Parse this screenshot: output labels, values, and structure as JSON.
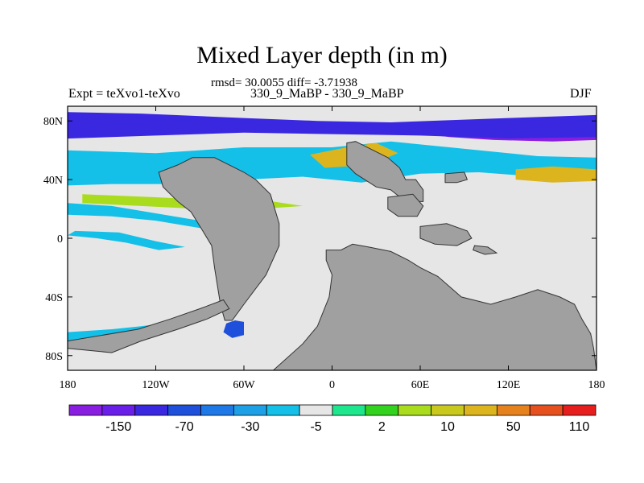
{
  "chart_data": {
    "type": "heatmap",
    "title": "Mixed Layer depth (in m)",
    "stats_text": "rmsd= 30.0055 diff= -3.71938",
    "left_label": "Expt = teXvo1-teXvo",
    "center_label": "330_9_MaBP - 330_9_MaBP",
    "right_label": "DJF",
    "xlim": [
      -180,
      180
    ],
    "ylim": [
      -90,
      90
    ],
    "x_ticks": [
      {
        "value": -180,
        "label": "180"
      },
      {
        "value": -120,
        "label": "120W"
      },
      {
        "value": -60,
        "label": "60W"
      },
      {
        "value": 0,
        "label": "0"
      },
      {
        "value": 60,
        "label": "60E"
      },
      {
        "value": 120,
        "label": "120E"
      },
      {
        "value": 180,
        "label": "180"
      }
    ],
    "y_ticks": [
      {
        "value": 80,
        "label": "80N"
      },
      {
        "value": 40,
        "label": "40N"
      },
      {
        "value": 0,
        "label": "0"
      },
      {
        "value": -40,
        "label": "40S"
      },
      {
        "value": -80,
        "label": "80S"
      }
    ],
    "colorbar": {
      "colors": [
        "#8a1ee0",
        "#6a1fe8",
        "#3a28e0",
        "#1e50dc",
        "#1e78e6",
        "#1ea0e6",
        "#14c0e8",
        "#e6e6e6",
        "#1ee68c",
        "#32d21e",
        "#aadc1e",
        "#c8c81e",
        "#dcb41e",
        "#e6821e",
        "#e6501e",
        "#e61e1e"
      ],
      "labels": [
        {
          "after_box": 2,
          "text": "-150"
        },
        {
          "after_box": 4,
          "text": "-70"
        },
        {
          "after_box": 6,
          "text": "-30"
        },
        {
          "after_box": 8,
          "text": "-5"
        },
        {
          "after_box": 10,
          "text": "2"
        },
        {
          "after_box": 12,
          "text": "10"
        },
        {
          "after_box": 14,
          "text": "50"
        },
        {
          "after_box": 16,
          "text": "110"
        }
      ]
    },
    "colors": {
      "land": "#a0a0a0",
      "ocean_neutral": "#e6e6e6"
    },
    "land_masks": [
      {
        "name": "americas",
        "points": [
          [
            -105,
            50
          ],
          [
            -95,
            55
          ],
          [
            -80,
            55
          ],
          [
            -70,
            50
          ],
          [
            -60,
            45
          ],
          [
            -52,
            40
          ],
          [
            -42,
            30
          ],
          [
            -36,
            10
          ],
          [
            -36,
            -5
          ],
          [
            -45,
            -25
          ],
          [
            -60,
            -45
          ],
          [
            -68,
            -56
          ],
          [
            -73,
            -56
          ],
          [
            -76,
            -45
          ],
          [
            -80,
            -20
          ],
          [
            -82,
            -5
          ],
          [
            -88,
            5
          ],
          [
            -96,
            18
          ],
          [
            -105,
            25
          ],
          [
            -115,
            35
          ],
          [
            -118,
            45
          ]
        ]
      },
      {
        "name": "africa",
        "points": [
          [
            -4,
            -8
          ],
          [
            6,
            -8
          ],
          [
            14,
            -4
          ],
          [
            25,
            -6
          ],
          [
            40,
            -9
          ],
          [
            52,
            -15
          ],
          [
            60,
            -20
          ],
          [
            72,
            -26
          ],
          [
            88,
            -40
          ],
          [
            108,
            -45
          ],
          [
            125,
            -40
          ],
          [
            140,
            -35
          ],
          [
            155,
            -40
          ],
          [
            165,
            -45
          ],
          [
            170,
            -55
          ],
          [
            176,
            -65
          ],
          [
            178,
            -75
          ],
          [
            180,
            -90
          ],
          [
            -40,
            -90
          ],
          [
            -20,
            -72
          ],
          [
            -10,
            -60
          ],
          [
            -2,
            -40
          ],
          [
            0,
            -25
          ],
          [
            -4,
            -15
          ]
        ]
      },
      {
        "name": "eurasia-west",
        "points": [
          [
            10,
            65
          ],
          [
            16,
            66
          ],
          [
            28,
            60
          ],
          [
            38,
            55
          ],
          [
            46,
            48
          ],
          [
            50,
            40
          ],
          [
            57,
            40
          ],
          [
            62,
            33
          ],
          [
            62,
            25
          ],
          [
            50,
            25
          ],
          [
            40,
            33
          ],
          [
            30,
            35
          ],
          [
            16,
            44
          ],
          [
            10,
            50
          ]
        ]
      },
      {
        "name": "arabia",
        "points": [
          [
            38,
            28
          ],
          [
            55,
            30
          ],
          [
            62,
            22
          ],
          [
            58,
            15
          ],
          [
            45,
            15
          ],
          [
            38,
            20
          ]
        ]
      },
      {
        "name": "india-ridge",
        "points": [
          [
            60,
            8
          ],
          [
            78,
            10
          ],
          [
            92,
            5
          ],
          [
            95,
            0
          ],
          [
            85,
            -5
          ],
          [
            70,
            -4
          ],
          [
            60,
            0
          ]
        ]
      },
      {
        "name": "asia-east",
        "points": [
          [
            77,
            44
          ],
          [
            90,
            45
          ],
          [
            92,
            40
          ],
          [
            85,
            38
          ],
          [
            77,
            38
          ]
        ]
      },
      {
        "name": "sea-island",
        "points": [
          [
            97,
            -5
          ],
          [
            106,
            -6
          ],
          [
            112,
            -10
          ],
          [
            104,
            -11
          ],
          [
            96,
            -8
          ]
        ]
      },
      {
        "name": "antarctic-arm",
        "points": [
          [
            -132,
            -62
          ],
          [
            -110,
            -55
          ],
          [
            -90,
            -48
          ],
          [
            -74,
            -42
          ],
          [
            -70,
            -48
          ],
          [
            -85,
            -55
          ],
          [
            -105,
            -62
          ],
          [
            -130,
            -70
          ],
          [
            -150,
            -78
          ],
          [
            -180,
            -75
          ],
          [
            -180,
            -70
          ]
        ]
      }
    ],
    "anomaly_bands": [
      {
        "id": "arctic-deep-west",
        "value": -200,
        "points": [
          [
            -180,
            77
          ],
          [
            -150,
            77
          ],
          [
            -120,
            76
          ],
          [
            -110,
            73
          ],
          [
            -130,
            70
          ],
          [
            -155,
            69
          ],
          [
            -180,
            69
          ]
        ]
      },
      {
        "id": "arctic-deep-east",
        "value": -200,
        "points": [
          [
            50,
            78
          ],
          [
            90,
            79
          ],
          [
            120,
            80
          ],
          [
            180,
            80
          ],
          [
            180,
            67
          ],
          [
            150,
            66
          ],
          [
            110,
            67
          ],
          [
            80,
            69
          ],
          [
            55,
            72
          ]
        ]
      },
      {
        "id": "arctic-mid",
        "value": -90,
        "points": [
          [
            -180,
            86
          ],
          [
            -130,
            85
          ],
          [
            -60,
            82
          ],
          [
            -10,
            80
          ],
          [
            40,
            79
          ],
          [
            120,
            82
          ],
          [
            180,
            84
          ],
          [
            180,
            69
          ],
          [
            120,
            68
          ],
          [
            60,
            70
          ],
          [
            0,
            71
          ],
          [
            -60,
            72
          ],
          [
            -120,
            70
          ],
          [
            -180,
            68
          ]
        ]
      },
      {
        "id": "north-subpolar-strong",
        "value": -40,
        "points": [
          [
            -170,
            55
          ],
          [
            -120,
            53
          ],
          [
            -80,
            55
          ],
          [
            -40,
            60
          ],
          [
            0,
            58
          ],
          [
            -40,
            48
          ],
          [
            -90,
            44
          ],
          [
            -130,
            43
          ],
          [
            -170,
            45
          ]
        ]
      },
      {
        "id": "north-subpolar",
        "value": -10,
        "points": [
          [
            -180,
            60
          ],
          [
            -120,
            58
          ],
          [
            -60,
            62
          ],
          [
            0,
            62
          ],
          [
            40,
            66
          ],
          [
            80,
            62
          ],
          [
            140,
            56
          ],
          [
            180,
            55
          ],
          [
            180,
            40
          ],
          [
            140,
            42
          ],
          [
            100,
            45
          ],
          [
            60,
            44
          ],
          [
            20,
            38
          ],
          [
            -20,
            42
          ],
          [
            -60,
            40
          ],
          [
            -110,
            37
          ],
          [
            -150,
            37
          ],
          [
            -180,
            36
          ]
        ]
      },
      {
        "id": "north-atlantic-plus",
        "value": 20,
        "points": [
          [
            -15,
            57
          ],
          [
            10,
            62
          ],
          [
            30,
            65
          ],
          [
            45,
            58
          ],
          [
            25,
            50
          ],
          [
            -5,
            48
          ]
        ]
      },
      {
        "id": "north-pacific-plus",
        "value": 30,
        "points": [
          [
            125,
            47
          ],
          [
            150,
            49
          ],
          [
            180,
            47
          ],
          [
            180,
            39
          ],
          [
            150,
            38
          ],
          [
            125,
            40
          ]
        ]
      },
      {
        "id": "tropical-band",
        "value": -10,
        "points": [
          [
            -180,
            24
          ],
          [
            -150,
            22
          ],
          [
            -120,
            17
          ],
          [
            -90,
            12
          ],
          [
            -60,
            14
          ],
          [
            -40,
            8
          ],
          [
            -60,
            6
          ],
          [
            -90,
            7
          ],
          [
            -120,
            12
          ],
          [
            -150,
            15
          ],
          [
            -180,
            16
          ]
        ]
      },
      {
        "id": "south-tropical",
        "value": -10,
        "points": [
          [
            -180,
            2
          ],
          [
            -160,
            0
          ],
          [
            -140,
            -3
          ],
          [
            -118,
            -8
          ],
          [
            -100,
            -6
          ],
          [
            -120,
            -2
          ],
          [
            -145,
            4
          ],
          [
            -175,
            5
          ]
        ]
      },
      {
        "id": "southern-ocean",
        "value": -10,
        "points": [
          [
            -180,
            -64
          ],
          [
            -150,
            -62
          ],
          [
            -130,
            -60
          ],
          [
            -115,
            -58
          ],
          [
            -120,
            -66
          ],
          [
            -150,
            -70
          ],
          [
            -180,
            -72
          ]
        ]
      },
      {
        "id": "tropical-plus",
        "value": 5,
        "points": [
          [
            -170,
            30
          ],
          [
            -120,
            28
          ],
          [
            -80,
            26
          ],
          [
            -40,
            25
          ],
          [
            -20,
            22
          ],
          [
            -50,
            20
          ],
          [
            -90,
            20
          ],
          [
            -130,
            22
          ],
          [
            -170,
            24
          ]
        ]
      },
      {
        "id": "antarctic-box",
        "value": -60,
        "points": [
          [
            -72,
            -58
          ],
          [
            -66,
            -56
          ],
          [
            -60,
            -57
          ],
          [
            -60,
            -66
          ],
          [
            -68,
            -68
          ],
          [
            -74,
            -64
          ]
        ]
      }
    ]
  }
}
